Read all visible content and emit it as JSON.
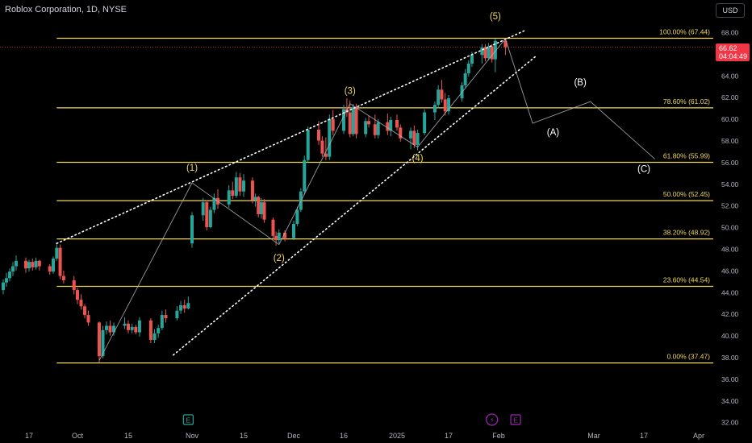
{
  "header": {
    "title": "Roblox Corporation, 1D, NYSE",
    "currency": "USD"
  },
  "price_tag": {
    "price": "66.62",
    "countdown": "04:04:49"
  },
  "colors": {
    "up": "#26a69a",
    "down": "#ef5350",
    "fib": "#f0d75b",
    "label": "#f0d75b",
    "text": "#d1d4dc",
    "axis": "#b2b5be",
    "wave": "#b2b5be"
  },
  "chart_data": {
    "type": "candlestick",
    "title": "Roblox Corporation, 1D, NYSE",
    "ylim": [
      31,
      70
    ],
    "y_ticks": [
      32,
      34,
      36,
      38,
      40,
      42,
      44,
      46,
      48,
      50,
      52,
      54,
      56,
      58,
      60,
      62,
      64,
      66,
      68
    ],
    "y_tick_labels": [
      "32.00",
      "34.00",
      "36.00",
      "38.00",
      "40.00",
      "42.00",
      "44.00",
      "46.00",
      "48.00",
      "50.00",
      "52.00",
      "54.00",
      "56.00",
      "58.00",
      "60.00",
      "62.00",
      "64.00",
      "66.00",
      "68.00"
    ],
    "x_ticks": [
      {
        "date": "2024-09-17",
        "label": "17"
      },
      {
        "date": "2024-10-01",
        "label": "Oct"
      },
      {
        "date": "2024-10-15",
        "label": "15"
      },
      {
        "date": "2024-11-01",
        "label": "Nov"
      },
      {
        "date": "2024-11-15",
        "label": "15"
      },
      {
        "date": "2024-12-02",
        "label": "Dec"
      },
      {
        "date": "2024-12-16",
        "label": "16"
      },
      {
        "date": "2025-01-02",
        "label": "2025"
      },
      {
        "date": "2025-01-17",
        "label": "17"
      },
      {
        "date": "2025-02-01",
        "label": "Feb"
      },
      {
        "date": "2025-03-01",
        "label": "Mar"
      },
      {
        "date": "2025-03-17",
        "label": "17"
      },
      {
        "date": "2025-04-01",
        "label": "Apr"
      }
    ],
    "candles": [
      {
        "date": "2024-09-09",
        "open": 44.2,
        "high": 45.2,
        "low": 43.8,
        "close": 44.9
      },
      {
        "date": "2024-09-10",
        "open": 44.9,
        "high": 45.8,
        "low": 44.5,
        "close": 45.3
      },
      {
        "date": "2024-09-11",
        "open": 45.3,
        "high": 46.2,
        "low": 45.0,
        "close": 45.9
      },
      {
        "date": "2024-09-12",
        "open": 45.9,
        "high": 46.8,
        "low": 45.5,
        "close": 46.4
      },
      {
        "date": "2024-09-13",
        "open": 46.4,
        "high": 47.4,
        "low": 46.0,
        "close": 46.9
      },
      {
        "date": "2024-09-16",
        "open": 46.9,
        "high": 47.2,
        "low": 45.8,
        "close": 46.2
      },
      {
        "date": "2024-09-17",
        "open": 46.2,
        "high": 47.0,
        "low": 45.9,
        "close": 46.8
      },
      {
        "date": "2024-09-18",
        "open": 46.8,
        "high": 47.1,
        "low": 46.0,
        "close": 46.3
      },
      {
        "date": "2024-09-19",
        "open": 46.3,
        "high": 47.2,
        "low": 46.1,
        "close": 46.9
      },
      {
        "date": "2024-09-20",
        "open": 46.9,
        "high": 47.0,
        "low": 46.0,
        "close": 46.4
      },
      {
        "date": "2024-09-23",
        "open": 46.4,
        "high": 46.6,
        "low": 45.6,
        "close": 45.9
      },
      {
        "date": "2024-09-24",
        "open": 45.9,
        "high": 47.3,
        "low": 45.7,
        "close": 47.1
      },
      {
        "date": "2024-09-25",
        "open": 47.1,
        "high": 48.6,
        "low": 46.9,
        "close": 48.1
      },
      {
        "date": "2024-09-26",
        "open": 48.1,
        "high": 48.4,
        "low": 45.2,
        "close": 45.5
      },
      {
        "date": "2024-09-27",
        "open": 45.5,
        "high": 46.0,
        "low": 44.8,
        "close": 45.1
      },
      {
        "date": "2024-09-30",
        "open": 45.1,
        "high": 45.5,
        "low": 43.8,
        "close": 44.2
      },
      {
        "date": "2024-10-01",
        "open": 44.2,
        "high": 44.4,
        "low": 42.9,
        "close": 43.3
      },
      {
        "date": "2024-10-02",
        "open": 43.3,
        "high": 43.8,
        "low": 42.4,
        "close": 42.7
      },
      {
        "date": "2024-10-03",
        "open": 42.7,
        "high": 42.9,
        "low": 41.6,
        "close": 41.9
      },
      {
        "date": "2024-10-04",
        "open": 41.9,
        "high": 42.3,
        "low": 40.9,
        "close": 41.2
      },
      {
        "date": "2024-10-07",
        "open": 41.2,
        "high": 41.3,
        "low": 37.5,
        "close": 38.1
      },
      {
        "date": "2024-10-08",
        "open": 38.1,
        "high": 40.9,
        "low": 37.9,
        "close": 40.5
      },
      {
        "date": "2024-10-09",
        "open": 40.5,
        "high": 41.3,
        "low": 40.1,
        "close": 40.9
      },
      {
        "date": "2024-10-10",
        "open": 40.9,
        "high": 41.4,
        "low": 40.0,
        "close": 40.3
      },
      {
        "date": "2024-10-11",
        "open": 40.3,
        "high": 41.2,
        "low": 40.0,
        "close": 40.9
      },
      {
        "date": "2024-10-14",
        "open": 40.9,
        "high": 41.7,
        "low": 40.6,
        "close": 41.1
      },
      {
        "date": "2024-10-15",
        "open": 41.1,
        "high": 41.4,
        "low": 40.2,
        "close": 40.5
      },
      {
        "date": "2024-10-16",
        "open": 40.5,
        "high": 41.1,
        "low": 40.2,
        "close": 40.8
      },
      {
        "date": "2024-10-17",
        "open": 40.8,
        "high": 41.0,
        "low": 40.1,
        "close": 40.3
      },
      {
        "date": "2024-10-18",
        "open": 40.3,
        "high": 41.7,
        "low": 39.9,
        "close": 41.4
      },
      {
        "date": "2024-10-21",
        "open": 41.4,
        "high": 41.6,
        "low": 39.3,
        "close": 39.6
      },
      {
        "date": "2024-10-22",
        "open": 39.6,
        "high": 40.6,
        "low": 39.3,
        "close": 40.2
      },
      {
        "date": "2024-10-23",
        "open": 40.2,
        "high": 41.0,
        "low": 39.8,
        "close": 40.7
      },
      {
        "date": "2024-10-24",
        "open": 40.7,
        "high": 42.3,
        "low": 40.5,
        "close": 41.9
      },
      {
        "date": "2024-10-25",
        "open": 41.9,
        "high": 42.4,
        "low": 41.2,
        "close": 41.6
      },
      {
        "date": "2024-10-28",
        "open": 41.6,
        "high": 42.7,
        "low": 41.4,
        "close": 42.3
      },
      {
        "date": "2024-10-29",
        "open": 42.3,
        "high": 43.2,
        "low": 42.0,
        "close": 42.8
      },
      {
        "date": "2024-10-30",
        "open": 42.8,
        "high": 43.3,
        "low": 42.1,
        "close": 42.5
      },
      {
        "date": "2024-10-31",
        "open": 42.5,
        "high": 43.6,
        "low": 42.4,
        "close": 43.0
      },
      {
        "date": "2024-11-01",
        "open": 48.5,
        "high": 51.4,
        "low": 48.1,
        "close": 51.1
      },
      {
        "date": "2024-11-04",
        "open": 51.1,
        "high": 52.7,
        "low": 50.6,
        "close": 52.3
      },
      {
        "date": "2024-11-05",
        "open": 52.3,
        "high": 52.5,
        "low": 49.7,
        "close": 50.0
      },
      {
        "date": "2024-11-06",
        "open": 50.0,
        "high": 51.9,
        "low": 49.9,
        "close": 51.6
      },
      {
        "date": "2024-11-07",
        "open": 51.6,
        "high": 53.1,
        "low": 51.3,
        "close": 52.7
      },
      {
        "date": "2024-11-08",
        "open": 52.7,
        "high": 53.5,
        "low": 51.7,
        "close": 52.1
      },
      {
        "date": "2024-11-11",
        "open": 52.1,
        "high": 53.9,
        "low": 51.8,
        "close": 53.4
      },
      {
        "date": "2024-11-12",
        "open": 53.4,
        "high": 54.2,
        "low": 52.6,
        "close": 52.9
      },
      {
        "date": "2024-11-13",
        "open": 52.9,
        "high": 55.1,
        "low": 52.7,
        "close": 54.6
      },
      {
        "date": "2024-11-14",
        "open": 54.6,
        "high": 55.0,
        "low": 52.9,
        "close": 53.3
      },
      {
        "date": "2024-11-15",
        "open": 53.3,
        "high": 54.9,
        "low": 52.8,
        "close": 54.3
      },
      {
        "date": "2024-11-18",
        "open": 54.3,
        "high": 54.6,
        "low": 52.2,
        "close": 52.5
      },
      {
        "date": "2024-11-19",
        "open": 52.5,
        "high": 53.1,
        "low": 51.9,
        "close": 52.8
      },
      {
        "date": "2024-11-20",
        "open": 52.8,
        "high": 52.9,
        "low": 50.9,
        "close": 51.2
      },
      {
        "date": "2024-11-21",
        "open": 51.2,
        "high": 52.7,
        "low": 50.8,
        "close": 52.3
      },
      {
        "date": "2024-11-22",
        "open": 52.3,
        "high": 52.6,
        "low": 50.4,
        "close": 50.7
      },
      {
        "date": "2024-11-25",
        "open": 50.7,
        "high": 50.9,
        "low": 48.9,
        "close": 49.2
      },
      {
        "date": "2024-11-26",
        "open": 49.2,
        "high": 49.6,
        "low": 48.3,
        "close": 48.8
      },
      {
        "date": "2024-11-27",
        "open": 48.8,
        "high": 49.8,
        "low": 48.5,
        "close": 49.5
      },
      {
        "date": "2024-11-29",
        "open": 49.5,
        "high": 49.7,
        "low": 48.7,
        "close": 49.0
      },
      {
        "date": "2024-12-02",
        "open": 49.0,
        "high": 50.6,
        "low": 48.8,
        "close": 50.3
      },
      {
        "date": "2024-12-03",
        "open": 50.3,
        "high": 51.9,
        "low": 50.1,
        "close": 51.6
      },
      {
        "date": "2024-12-04",
        "open": 51.6,
        "high": 53.6,
        "low": 51.4,
        "close": 53.3
      },
      {
        "date": "2024-12-05",
        "open": 53.3,
        "high": 56.6,
        "low": 53.0,
        "close": 56.2
      },
      {
        "date": "2024-12-06",
        "open": 56.2,
        "high": 59.3,
        "low": 56.0,
        "close": 59.0
      },
      {
        "date": "2024-12-09",
        "open": 59.0,
        "high": 59.8,
        "low": 57.6,
        "close": 58.0
      },
      {
        "date": "2024-12-10",
        "open": 58.0,
        "high": 58.4,
        "low": 56.5,
        "close": 56.8
      },
      {
        "date": "2024-12-11",
        "open": 56.8,
        "high": 58.3,
        "low": 56.2,
        "close": 56.5
      },
      {
        "date": "2024-12-12",
        "open": 56.5,
        "high": 60.4,
        "low": 56.2,
        "close": 60.0
      },
      {
        "date": "2024-12-13",
        "open": 60.0,
        "high": 60.8,
        "low": 58.5,
        "close": 58.9
      },
      {
        "date": "2024-12-16",
        "open": 58.9,
        "high": 61.3,
        "low": 58.6,
        "close": 60.9
      },
      {
        "date": "2024-12-17",
        "open": 60.9,
        "high": 61.9,
        "low": 60.2,
        "close": 60.6
      },
      {
        "date": "2024-12-18",
        "open": 60.6,
        "high": 61.7,
        "low": 58.3,
        "close": 58.6
      },
      {
        "date": "2024-12-19",
        "open": 58.6,
        "high": 61.4,
        "low": 58.4,
        "close": 61.1
      },
      {
        "date": "2024-12-20",
        "open": 61.1,
        "high": 61.4,
        "low": 58.2,
        "close": 58.6
      },
      {
        "date": "2024-12-23",
        "open": 58.6,
        "high": 60.1,
        "low": 58.3,
        "close": 59.8
      },
      {
        "date": "2024-12-24",
        "open": 59.8,
        "high": 60.3,
        "low": 59.2,
        "close": 59.5
      },
      {
        "date": "2024-12-26",
        "open": 59.5,
        "high": 60.4,
        "low": 58.2,
        "close": 58.5
      },
      {
        "date": "2024-12-27",
        "open": 58.5,
        "high": 60.0,
        "low": 58.2,
        "close": 59.7
      },
      {
        "date": "2024-12-30",
        "open": 59.7,
        "high": 60.5,
        "low": 58.5,
        "close": 58.9
      },
      {
        "date": "2024-12-31",
        "open": 58.9,
        "high": 60.2,
        "low": 58.4,
        "close": 59.9
      },
      {
        "date": "2025-01-02",
        "open": 59.9,
        "high": 60.4,
        "low": 58.9,
        "close": 59.2
      },
      {
        "date": "2025-01-03",
        "open": 59.2,
        "high": 59.5,
        "low": 57.9,
        "close": 58.2
      },
      {
        "date": "2025-01-06",
        "open": 58.2,
        "high": 59.2,
        "low": 57.2,
        "close": 58.9
      },
      {
        "date": "2025-01-07",
        "open": 58.9,
        "high": 59.4,
        "low": 57.3,
        "close": 57.6
      },
      {
        "date": "2025-01-08",
        "open": 57.6,
        "high": 59.0,
        "low": 57.1,
        "close": 58.7
      },
      {
        "date": "2025-01-10",
        "open": 58.7,
        "high": 60.9,
        "low": 58.5,
        "close": 60.6
      },
      {
        "date": "2025-01-13",
        "open": 60.6,
        "high": 61.6,
        "low": 59.9,
        "close": 61.3
      },
      {
        "date": "2025-01-14",
        "open": 61.3,
        "high": 63.1,
        "low": 61.0,
        "close": 62.7
      },
      {
        "date": "2025-01-15",
        "open": 62.7,
        "high": 63.6,
        "low": 61.5,
        "close": 61.8
      },
      {
        "date": "2025-01-16",
        "open": 61.8,
        "high": 62.4,
        "low": 60.3,
        "close": 60.7
      },
      {
        "date": "2025-01-17",
        "open": 60.7,
        "high": 62.2,
        "low": 60.4,
        "close": 61.9
      },
      {
        "date": "2025-01-21",
        "open": 61.9,
        "high": 63.4,
        "low": 61.6,
        "close": 63.1
      },
      {
        "date": "2025-01-22",
        "open": 63.1,
        "high": 64.6,
        "low": 62.9,
        "close": 64.2
      },
      {
        "date": "2025-01-23",
        "open": 64.2,
        "high": 65.4,
        "low": 63.9,
        "close": 65.1
      },
      {
        "date": "2025-01-24",
        "open": 65.1,
        "high": 66.2,
        "low": 64.8,
        "close": 65.9
      },
      {
        "date": "2025-01-27",
        "open": 65.9,
        "high": 66.9,
        "low": 65.1,
        "close": 66.6
      },
      {
        "date": "2025-01-28",
        "open": 66.6,
        "high": 66.9,
        "low": 65.3,
        "close": 65.6
      },
      {
        "date": "2025-01-29",
        "open": 65.6,
        "high": 67.0,
        "low": 65.4,
        "close": 66.7
      },
      {
        "date": "2025-01-30",
        "open": 66.7,
        "high": 66.9,
        "low": 65.2,
        "close": 65.5
      },
      {
        "date": "2025-01-31",
        "open": 65.5,
        "high": 67.4,
        "low": 64.3,
        "close": 67.2
      },
      {
        "date": "2025-02-03",
        "open": 67.2,
        "high": 67.4,
        "low": 65.9,
        "close": 66.62
      }
    ],
    "fib_levels": [
      {
        "value": 67.44,
        "label": "100.00% (67.44)"
      },
      {
        "value": 61.02,
        "label": "78.60% (61.02)"
      },
      {
        "value": 55.99,
        "label": "61.80% (55.99)"
      },
      {
        "value": 52.45,
        "label": "50.00% (52.45)"
      },
      {
        "value": 48.92,
        "label": "38.20% (48.92)"
      },
      {
        "value": 44.54,
        "label": "23.60% (44.54)"
      },
      {
        "value": 37.47,
        "label": "0.00% (37.47)"
      }
    ],
    "fib_start": "2024-09-25",
    "wave_labels": [
      {
        "text": "(1)",
        "date": "2024-11-01",
        "price": 55.2,
        "color": "yellow"
      },
      {
        "text": "(2)",
        "date": "2024-11-27",
        "price": 46.9,
        "color": "yellow"
      },
      {
        "text": "(3)",
        "date": "2024-12-18",
        "price": 62.3,
        "color": "yellow"
      },
      {
        "text": "(4)",
        "date": "2025-01-08",
        "price": 56.1,
        "color": "yellow"
      },
      {
        "text": "(5)",
        "date": "2025-01-31",
        "price": 69.2,
        "color": "yellow"
      },
      {
        "text": "(A)",
        "date": "2025-02-17",
        "price": 58.5,
        "color": "white"
      },
      {
        "text": "(B)",
        "date": "2025-02-25",
        "price": 63.1,
        "color": "white"
      },
      {
        "text": "(C)",
        "date": "2025-03-17",
        "price": 55.1,
        "color": "white"
      }
    ],
    "wave_path": [
      {
        "date": "2024-10-07",
        "price": 37.7
      },
      {
        "date": "2024-11-01",
        "price": 54.1
      },
      {
        "date": "2024-11-27",
        "price": 48.4
      },
      {
        "date": "2024-12-18",
        "price": 61.4
      },
      {
        "date": "2025-01-08",
        "price": 57.4
      },
      {
        "date": "2025-02-03",
        "price": 67.4
      },
      {
        "date": "2025-02-11",
        "price": 59.6
      },
      {
        "date": "2025-02-28",
        "price": 61.6
      },
      {
        "date": "2025-03-20",
        "price": 56.3
      }
    ],
    "channel_upper": [
      {
        "date": "2024-09-25",
        "price": 48.5
      },
      {
        "date": "2025-02-09",
        "price": 68.2
      }
    ],
    "channel_lower": [
      {
        "date": "2024-10-27",
        "price": 38.2
      },
      {
        "date": "2025-02-12",
        "price": 65.8
      }
    ],
    "current_price": 66.62,
    "event_markers": [
      {
        "label": "E",
        "date": "2024-10-31",
        "kind": "earnings",
        "color": "#26a69a"
      },
      {
        "label": "⚡",
        "date": "2025-01-30",
        "kind": "split",
        "color": "#9c27b0"
      },
      {
        "label": "E",
        "date": "2025-02-06",
        "kind": "earnings",
        "color": "#9c27b0"
      }
    ]
  }
}
